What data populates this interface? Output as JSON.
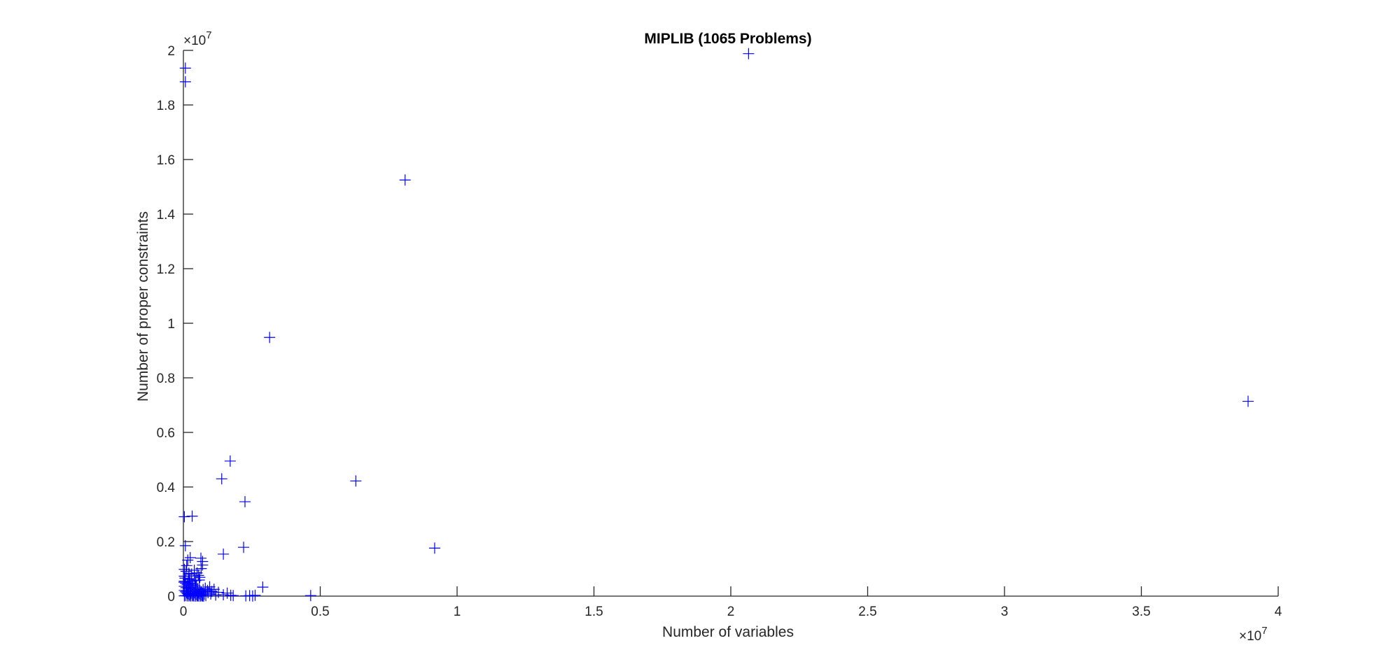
{
  "chart_data": {
    "type": "scatter",
    "title": "MIPLIB (1065 Problems)",
    "xlabel": "Number of variables",
    "ylabel": "Number of proper constraints",
    "x_multiplier": "×10",
    "x_exponent": "7",
    "y_multiplier": "×10",
    "y_exponent": "7",
    "xlim": [
      0,
      4
    ],
    "ylim": [
      0,
      2
    ],
    "x_ticks": [
      0,
      0.5,
      1,
      1.5,
      2,
      2.5,
      3,
      3.5,
      4
    ],
    "x_tick_labels": [
      "0",
      "0.5",
      "1",
      "1.5",
      "2",
      "2.5",
      "3",
      "3.5",
      "4"
    ],
    "y_ticks": [
      0,
      0.2,
      0.4,
      0.6,
      0.8,
      1,
      1.2,
      1.4,
      1.6,
      1.8,
      2
    ],
    "y_tick_labels": [
      "0",
      "0.2",
      "0.4",
      "0.6",
      "0.8",
      "1",
      "1.2",
      "1.4",
      "1.6",
      "1.8",
      "2"
    ],
    "marker": "+",
    "color": "#0000ff",
    "grid": false,
    "points": [
      [
        0.0072,
        1.935
      ],
      [
        0.0072,
        1.885
      ],
      [
        2.065,
        1.988
      ],
      [
        0.81,
        1.525
      ],
      [
        0.315,
        0.948
      ],
      [
        3.89,
        0.714
      ],
      [
        0.171,
        0.495
      ],
      [
        0.14,
        0.43
      ],
      [
        0.63,
        0.422
      ],
      [
        0.225,
        0.346
      ],
      [
        0.0036,
        0.291
      ],
      [
        0.032,
        0.293
      ],
      [
        0.22,
        0.179
      ],
      [
        0.918,
        0.176
      ],
      [
        0.146,
        0.154
      ],
      [
        0.0072,
        0.185
      ],
      [
        0.025,
        0.141
      ],
      [
        0.064,
        0.139
      ],
      [
        0.07,
        0.127
      ],
      [
        0.07,
        0.114
      ],
      [
        0.065,
        0.101
      ],
      [
        0.016,
        0.132
      ],
      [
        0.012,
        0.112
      ],
      [
        0.0036,
        0.098
      ],
      [
        0.01,
        0.091
      ],
      [
        0.02,
        0.084
      ],
      [
        0.0036,
        0.073
      ],
      [
        0.006,
        0.066
      ],
      [
        0.018,
        0.061
      ],
      [
        0.04,
        0.074
      ],
      [
        0.05,
        0.085
      ],
      [
        0.055,
        0.076
      ],
      [
        0.06,
        0.069
      ],
      [
        0.058,
        0.059
      ],
      [
        0.045,
        0.057
      ],
      [
        0.03,
        0.054
      ],
      [
        0.0025,
        0.051
      ],
      [
        0.008,
        0.047
      ],
      [
        0.014,
        0.043
      ],
      [
        0.022,
        0.048
      ],
      [
        0.034,
        0.044
      ],
      [
        0.042,
        0.038
      ],
      [
        0.048,
        0.033
      ],
      [
        0.0036,
        0.036
      ],
      [
        0.01,
        0.031
      ],
      [
        0.018,
        0.028
      ],
      [
        0.026,
        0.032
      ],
      [
        0.036,
        0.026
      ],
      [
        0.044,
        0.022
      ],
      [
        0.052,
        0.027
      ],
      [
        0.06,
        0.019
      ],
      [
        0.066,
        0.016
      ],
      [
        0.072,
        0.024
      ],
      [
        0.08,
        0.029
      ],
      [
        0.088,
        0.021
      ],
      [
        0.096,
        0.034
      ],
      [
        0.104,
        0.017
      ],
      [
        0.112,
        0.025
      ],
      [
        0.0036,
        0.021
      ],
      [
        0.008,
        0.016
      ],
      [
        0.012,
        0.012
      ],
      [
        0.016,
        0.009
      ],
      [
        0.02,
        0.006
      ],
      [
        0.024,
        0.004
      ],
      [
        0.028,
        0.011
      ],
      [
        0.032,
        0.007
      ],
      [
        0.036,
        0.003
      ],
      [
        0.04,
        0.012
      ],
      [
        0.046,
        0.006
      ],
      [
        0.052,
        0.002
      ],
      [
        0.058,
        0.009
      ],
      [
        0.064,
        0.004
      ],
      [
        0.07,
        0.001
      ],
      [
        0.076,
        0.007
      ],
      [
        0.082,
        0.002
      ],
      [
        0.0036,
        0.001
      ],
      [
        0.008,
        0.002
      ],
      [
        0.014,
        0.001
      ],
      [
        0.02,
        0.0008
      ],
      [
        0.026,
        0.0005
      ],
      [
        0.032,
        0.0012
      ],
      [
        0.038,
        0.0004
      ],
      [
        0.044,
        0.0002
      ],
      [
        0.05,
        0.0006
      ],
      [
        0.056,
        0.0003
      ],
      [
        0.062,
        0.0001
      ],
      [
        0.068,
        0.0009
      ],
      [
        0.074,
        0.0002
      ],
      [
        0.09,
        0.013
      ],
      [
        0.1,
        0.008
      ],
      [
        0.118,
        0.004
      ],
      [
        0.128,
        0.014
      ],
      [
        0.146,
        0.005
      ],
      [
        0.16,
        0.011
      ],
      [
        0.173,
        0.003
      ],
      [
        0.182,
        0.002
      ],
      [
        0.228,
        0.001
      ],
      [
        0.242,
        0.002
      ],
      [
        0.262,
        0.003
      ],
      [
        0.253,
        0.0005
      ],
      [
        0.29,
        0.033
      ],
      [
        0.465,
        0.002
      ],
      [
        0.024,
        0.064
      ],
      [
        0.03,
        0.081
      ],
      [
        0.04,
        0.095
      ],
      [
        0.012,
        0.02
      ],
      [
        0.044,
        0.01
      ],
      [
        0.054,
        0.014
      ],
      [
        0.02,
        0.039
      ],
      [
        0.027,
        0.017
      ],
      [
        0.0036,
        0.055
      ]
    ]
  }
}
